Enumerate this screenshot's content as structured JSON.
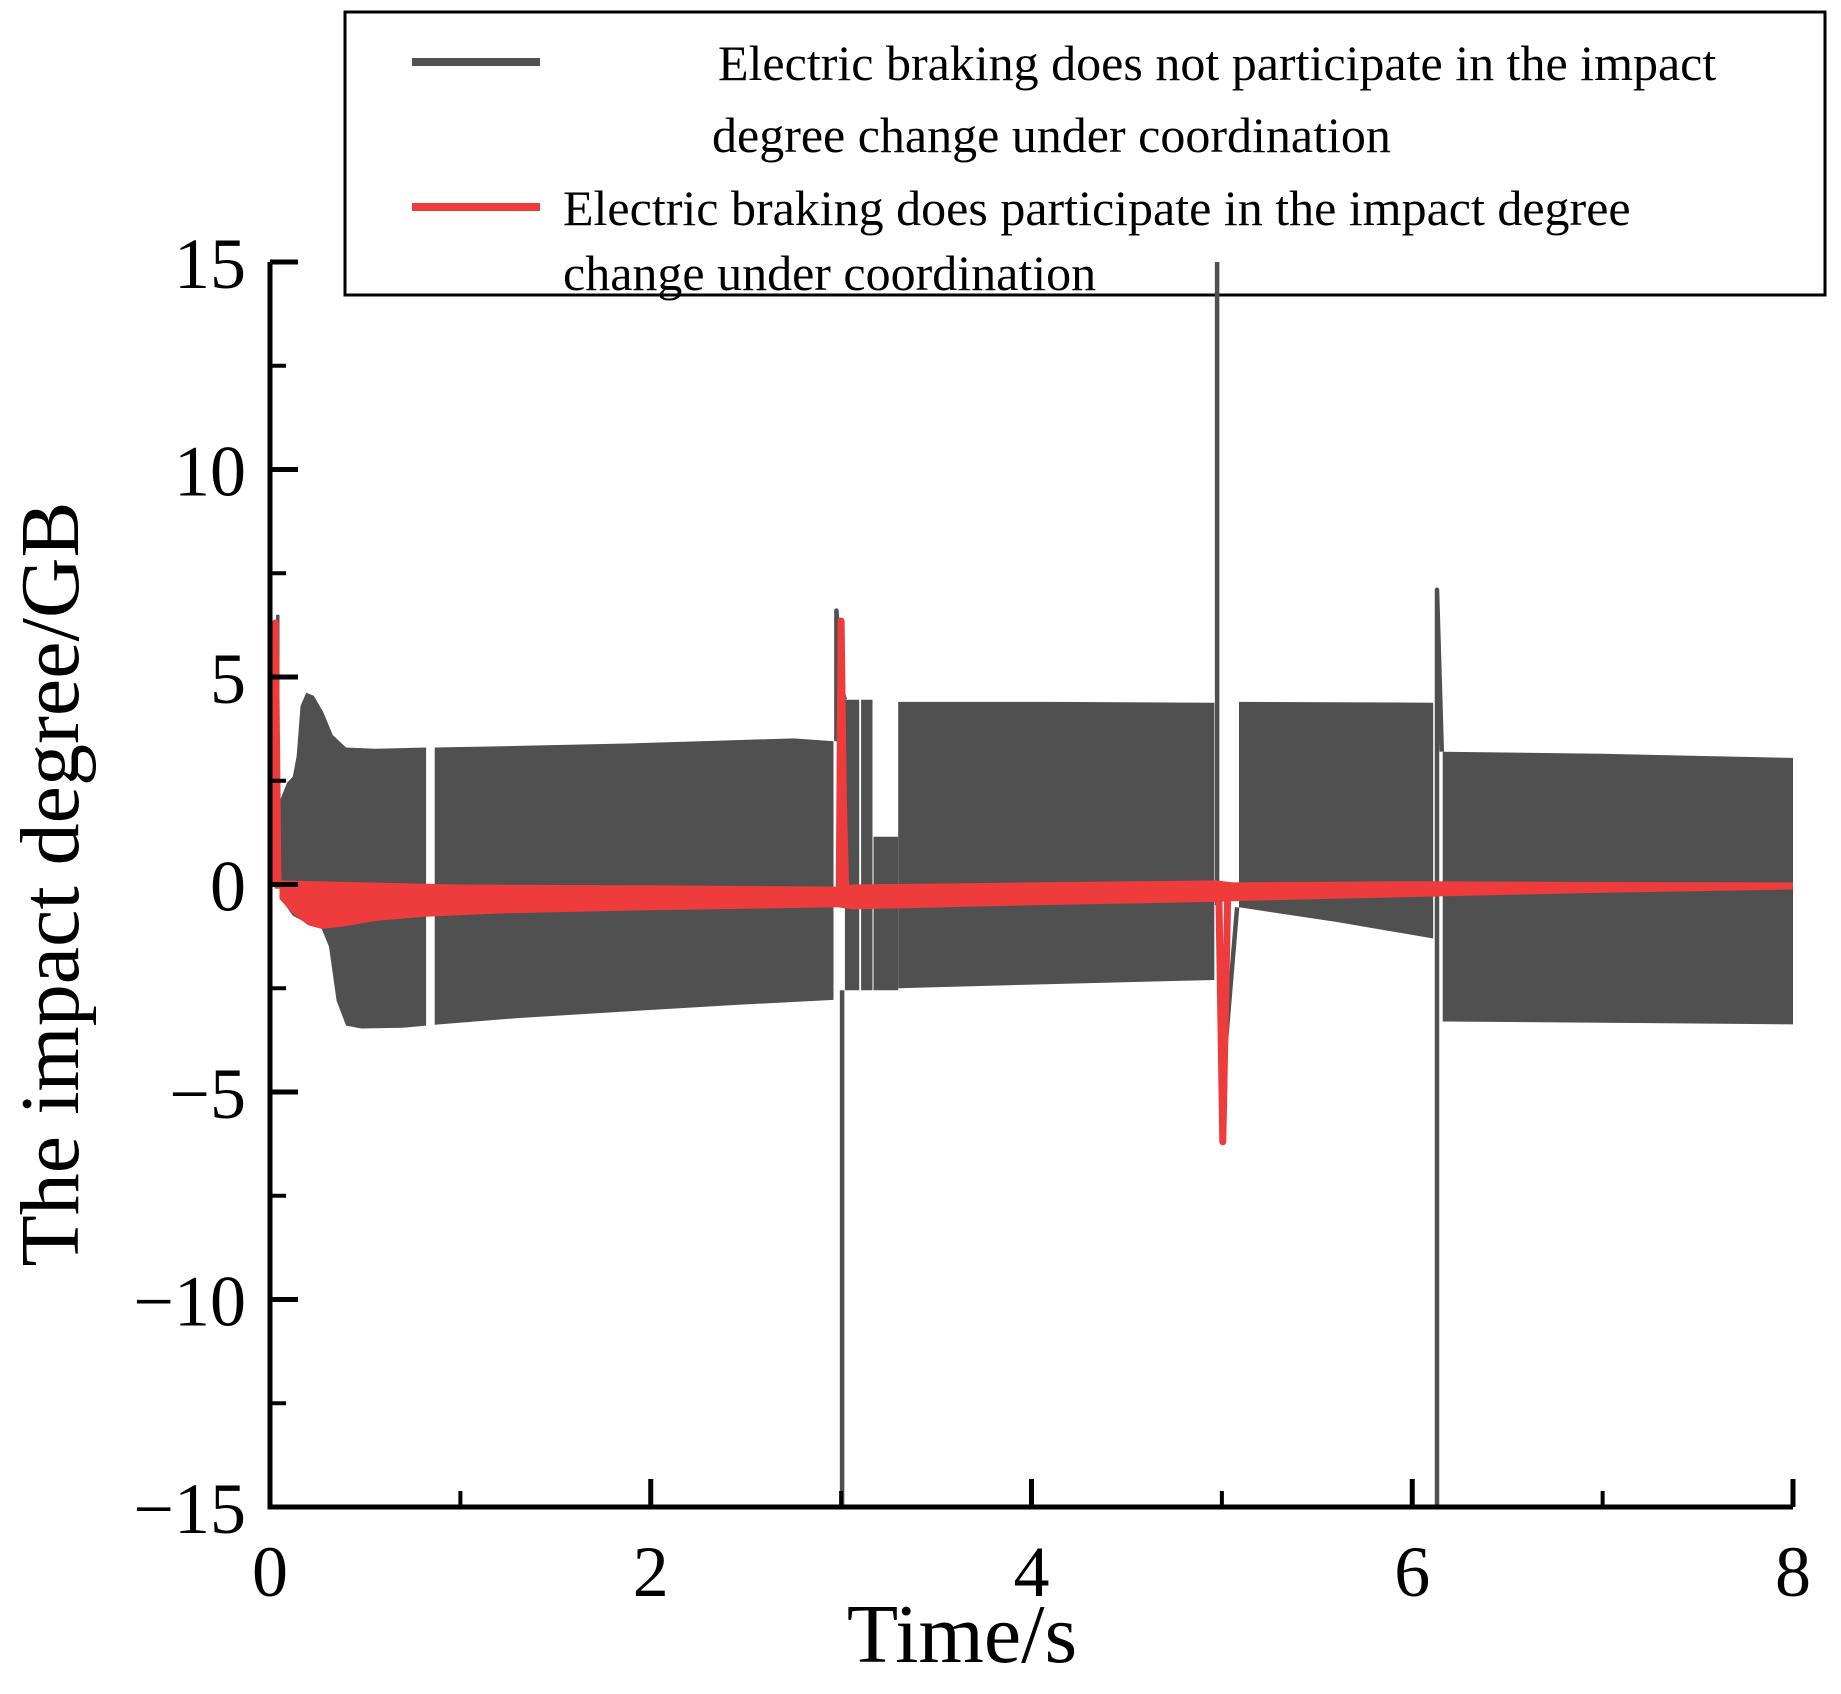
{
  "figure": {
    "background": "#ffffff",
    "axis_color": "#000000"
  },
  "legend": {
    "background": "#ffffff",
    "border_color": "#000000",
    "entries": [
      {
        "label": "Electric braking does not participate in the impact degree change under coordination",
        "lines": [
          "Electric braking does not participate in the impact",
          "degree change under coordination"
        ],
        "color": "#505050"
      },
      {
        "label": "Electric braking does participate in the impact degree change under coordination",
        "lines": [
          "Electric braking does participate in the impact degree",
          "change under coordination"
        ],
        "color": "#ee3c3d"
      }
    ]
  },
  "chart_data": {
    "type": "line",
    "title": "",
    "xlabel": "Time/s",
    "ylabel": "The impact degree/GB",
    "xlim": [
      0,
      8
    ],
    "ylim": [
      -15,
      15
    ],
    "grid": false,
    "legend_position": "top",
    "x_major_ticks": [
      0,
      2,
      4,
      6,
      8
    ],
    "x_tick_labels": [
      "0",
      "2",
      "4",
      "6",
      "8"
    ],
    "x_minor_ticks": [
      1,
      3,
      5,
      7
    ],
    "y_major_ticks": [
      -15,
      -10,
      -5,
      0,
      5,
      10,
      15
    ],
    "y_tick_labels": [
      "−15",
      "−10",
      "−5",
      "0",
      "5",
      "10",
      "15"
    ],
    "y_minor_ticks": [
      -12.5,
      -7.5,
      -2.5,
      2.5,
      7.5,
      12.5
    ],
    "series": [
      {
        "name": "Electric braking does not participate in the impact degree change under coordination",
        "color": "#505050",
        "render": "oscillation-envelope",
        "bands": [
          {
            "top": [
              [
                0.032,
                6.5
              ],
              [
                0.05,
                6.5
              ]
            ],
            "bottom": [
              [
                0.032,
                -0.1
              ],
              [
                0.05,
                -0.1
              ]
            ]
          },
          {
            "top": [
              [
                0.05,
                2.0
              ],
              [
                0.09,
                2.45
              ],
              [
                0.12,
                2.6
              ],
              [
                0.14,
                3.1
              ],
              [
                0.16,
                4.3
              ],
              [
                0.19,
                4.62
              ],
              [
                0.23,
                4.55
              ],
              [
                0.28,
                4.15
              ],
              [
                0.33,
                3.6
              ],
              [
                0.4,
                3.3
              ],
              [
                0.55,
                3.27
              ],
              [
                0.82,
                3.3
              ]
            ],
            "bottom": [
              [
                0.05,
                -0.3
              ],
              [
                0.12,
                -0.75
              ],
              [
                0.2,
                -0.95
              ],
              [
                0.27,
                -1.05
              ],
              [
                0.31,
                -1.5
              ],
              [
                0.35,
                -2.8
              ],
              [
                0.4,
                -3.4
              ],
              [
                0.48,
                -3.47
              ],
              [
                0.7,
                -3.45
              ],
              [
                0.82,
                -3.4
              ]
            ]
          },
          {
            "top": [
              [
                0.865,
                3.3
              ],
              [
                1.3,
                3.34
              ],
              [
                1.9,
                3.4
              ],
              [
                2.45,
                3.48
              ],
              [
                2.75,
                3.52
              ],
              [
                2.96,
                3.45
              ]
            ],
            "bottom": [
              [
                0.865,
                -3.38
              ],
              [
                1.3,
                -3.22
              ],
              [
                1.9,
                -3.05
              ],
              [
                2.45,
                -2.9
              ],
              [
                2.96,
                -2.78
              ]
            ]
          },
          {
            "top": [
              [
                3.02,
                4.45
              ],
              [
                3.095,
                4.45
              ]
            ],
            "bottom": [
              [
                3.02,
                -2.55
              ],
              [
                3.095,
                -2.55
              ]
            ]
          },
          {
            "top": [
              [
                3.105,
                4.45
              ],
              [
                3.165,
                4.45
              ]
            ],
            "bottom": [
              [
                3.105,
                -2.55
              ],
              [
                3.165,
                -2.55
              ]
            ]
          },
          {
            "top": [
              [
                3.17,
                1.15
              ],
              [
                3.3,
                1.15
              ]
            ],
            "bottom": [
              [
                3.17,
                -2.55
              ],
              [
                3.3,
                -2.55
              ]
            ]
          },
          {
            "top": [
              [
                3.3,
                4.4
              ],
              [
                4.1,
                4.4
              ],
              [
                4.96,
                4.38
              ]
            ],
            "bottom": [
              [
                3.3,
                -2.5
              ],
              [
                4.1,
                -2.4
              ],
              [
                4.96,
                -2.3
              ]
            ]
          },
          {
            "top": [
              [
                5.09,
                4.4
              ],
              [
                6.11,
                4.38
              ]
            ],
            "bottom": [
              [
                5.09,
                -0.55
              ],
              [
                5.6,
                -0.9
              ],
              [
                6.11,
                -1.3
              ]
            ]
          },
          {
            "top": [
              [
                6.16,
                3.2
              ],
              [
                7.0,
                3.15
              ],
              [
                8.0,
                3.05
              ]
            ],
            "bottom": [
              [
                6.16,
                -3.3
              ],
              [
                7.0,
                -3.33
              ],
              [
                8.0,
                -3.37
              ]
            ]
          }
        ],
        "spikes": [
          [
            [
              2.975,
              3.45
            ],
            [
              2.975,
              6.6
            ],
            [
              3.01,
              4.6
            ],
            [
              3.02,
              4.45
            ]
          ],
          [
            [
              3.005,
              -2.55
            ],
            [
              3.005,
              -15
            ]
          ],
          [
            [
              4.975,
              -0.5
            ],
            [
              4.975,
              15.0
            ]
          ],
          [
            [
              5.01,
              -4.4
            ],
            [
              5.08,
              -0.55
            ]
          ],
          [
            [
              6.13,
              -15
            ],
            [
              6.13,
              7.1
            ],
            [
              6.155,
              3.2
            ]
          ]
        ]
      },
      {
        "name": "Electric braking does participate in the impact degree change under coordination",
        "color": "#ee3c3d",
        "render": "oscillation-envelope",
        "band": {
          "top": [
            [
              0.05,
              0.1
            ],
            [
              0.5,
              0.05
            ],
            [
              1.0,
              0.0
            ],
            [
              2.0,
              -0.02
            ],
            [
              2.98,
              -0.05
            ],
            [
              3.06,
              0.0
            ],
            [
              4.0,
              0.05
            ],
            [
              4.97,
              0.1
            ],
            [
              5.06,
              0.05
            ],
            [
              6.0,
              0.08
            ],
            [
              7.0,
              0.06
            ],
            [
              8.0,
              0.05
            ]
          ],
          "bottom": [
            [
              0.05,
              -0.35
            ],
            [
              0.12,
              -0.7
            ],
            [
              0.2,
              -0.98
            ],
            [
              0.27,
              -1.07
            ],
            [
              0.38,
              -1.02
            ],
            [
              0.55,
              -0.88
            ],
            [
              0.8,
              -0.78
            ],
            [
              1.2,
              -0.7
            ],
            [
              2.0,
              -0.62
            ],
            [
              2.98,
              -0.55
            ],
            [
              3.06,
              -0.6
            ],
            [
              4.0,
              -0.5
            ],
            [
              4.97,
              -0.42
            ],
            [
              5.06,
              -0.4
            ],
            [
              6.0,
              -0.3
            ],
            [
              7.0,
              -0.2
            ],
            [
              8.0,
              -0.12
            ]
          ]
        },
        "spikes": [
          [
            [
              0.018,
              0.0
            ],
            [
              0.028,
              6.3
            ],
            [
              0.042,
              -0.1
            ]
          ],
          [
            [
              2.99,
              -0.3
            ],
            [
              3.0,
              6.35
            ],
            [
              3.012,
              2.0
            ],
            [
              3.025,
              -0.3
            ]
          ],
          [
            [
              4.985,
              -0.4
            ],
            [
              5.005,
              -6.2
            ],
            [
              5.03,
              -0.4
            ]
          ]
        ]
      }
    ]
  }
}
